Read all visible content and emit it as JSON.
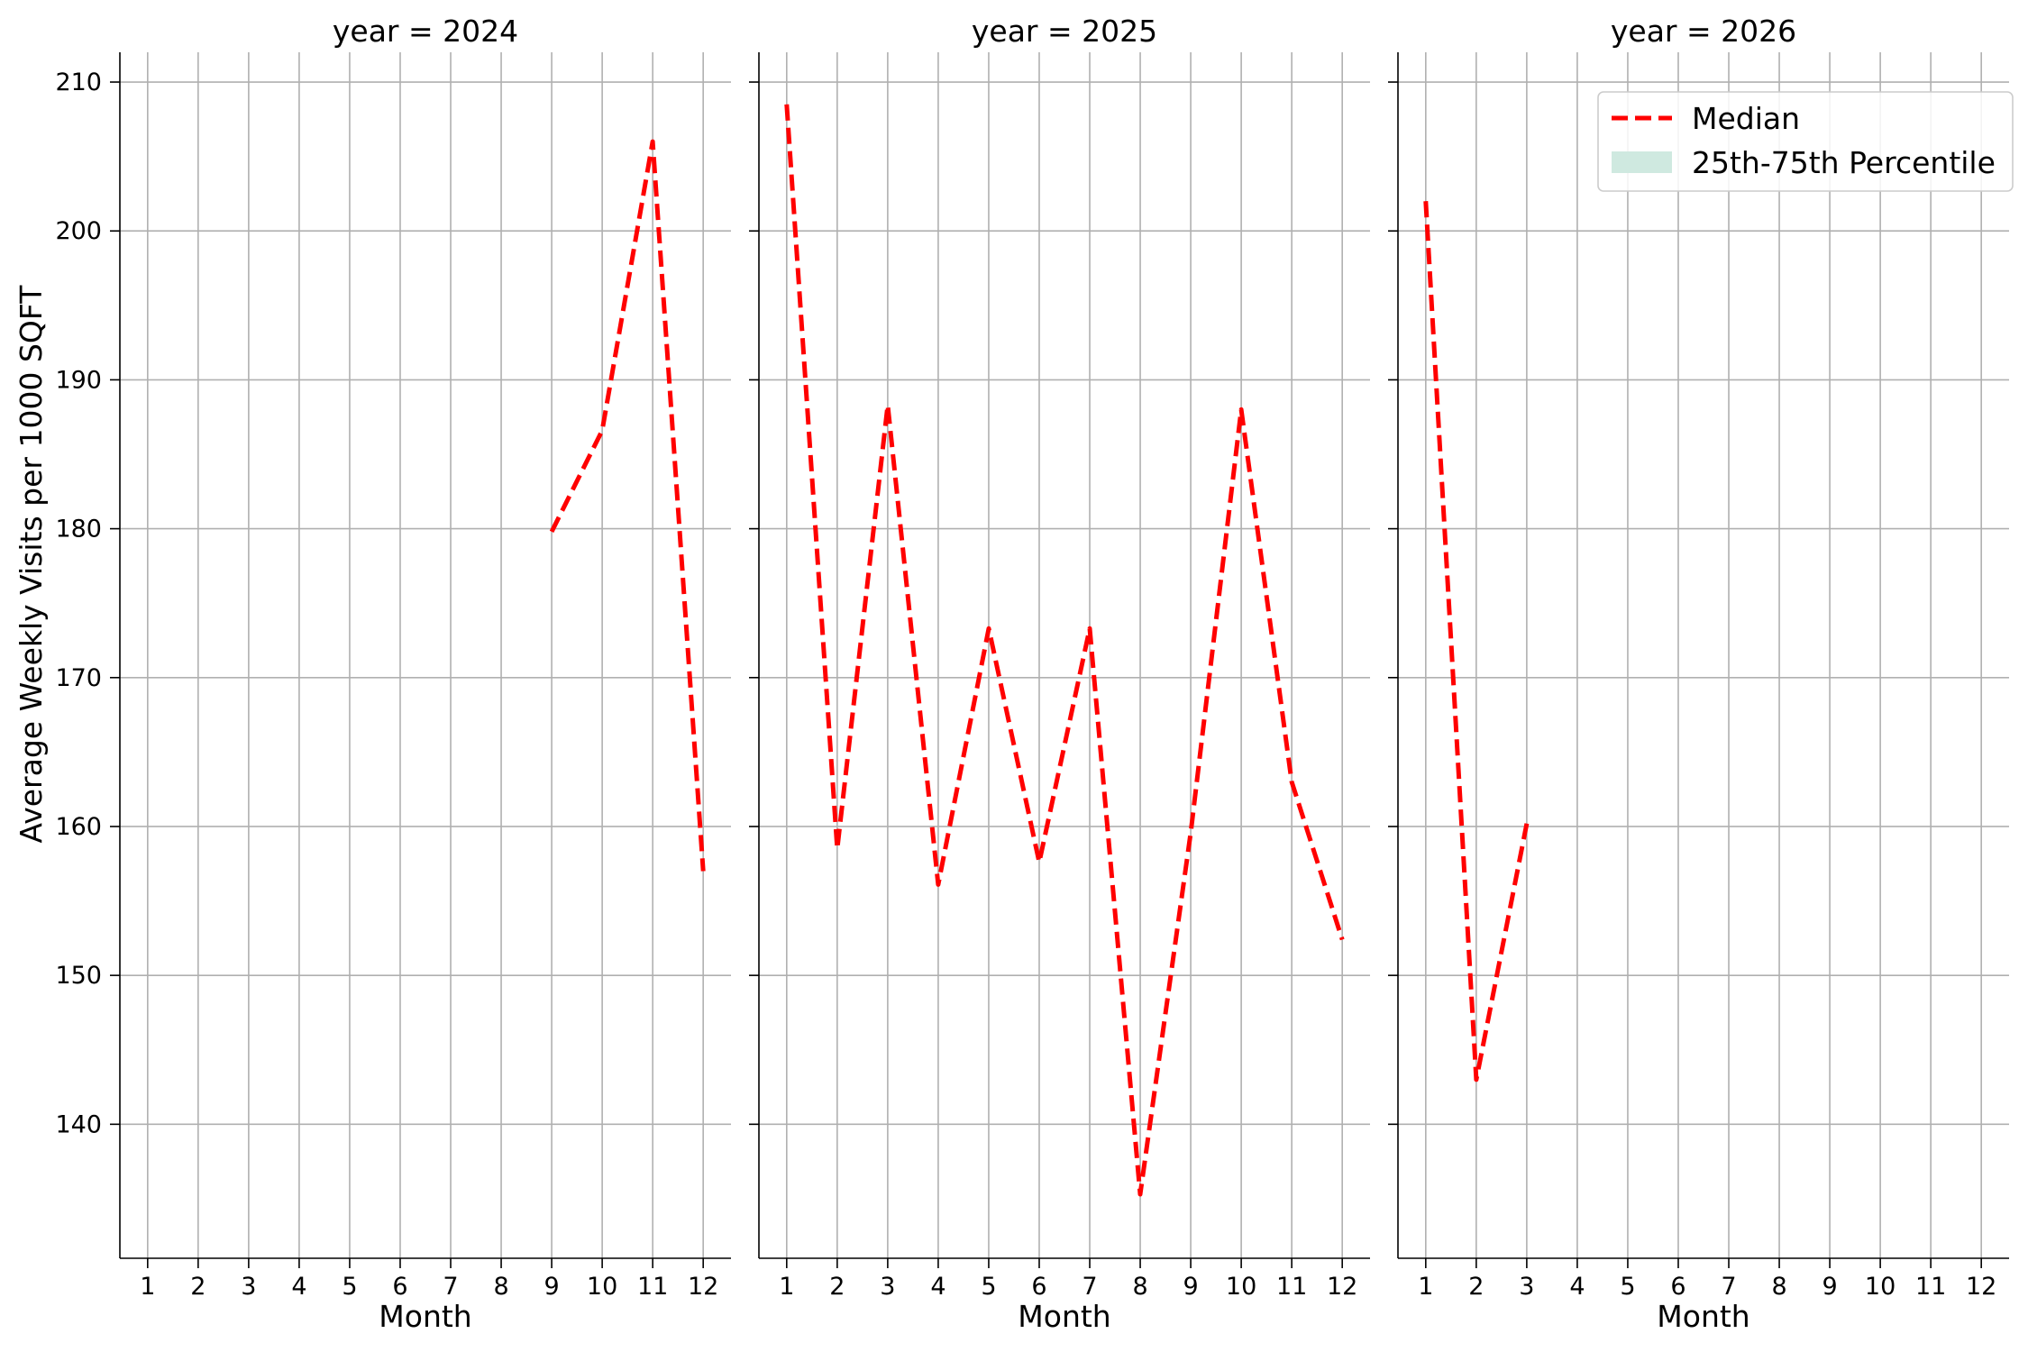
{
  "chart_data": {
    "type": "line",
    "x": [
      1,
      2,
      3,
      4,
      5,
      6,
      7,
      8,
      9,
      10,
      11,
      12
    ],
    "xlabel": "Month",
    "ylabel": "Average Weekly Visits per 1000 SQFT",
    "ylim": [
      131,
      212
    ],
    "xlim": [
      0.45,
      12.55
    ],
    "yticks": [
      140,
      150,
      160,
      170,
      180,
      190,
      200,
      210
    ],
    "grid": true,
    "sharey": true,
    "legend": {
      "placement": "top-right",
      "entries": [
        "Median",
        "25th-75th Percentile"
      ]
    },
    "colors": {
      "median": "#ff0000",
      "percentile_band": "#cfe9e0"
    },
    "panels": [
      {
        "title": "year = 2024",
        "series": [
          {
            "name": "Median",
            "x": [
              9,
              10,
              11,
              12
            ],
            "values": [
              179.8,
              186.6,
              206.0,
              157.0
            ]
          }
        ]
      },
      {
        "title": "year = 2025",
        "series": [
          {
            "name": "Median",
            "x": [
              1,
              2,
              3,
              4,
              5,
              6,
              7,
              8,
              9,
              10,
              11,
              12
            ],
            "values": [
              208.5,
              158.5,
              188.3,
              156.1,
              173.3,
              157.6,
              173.3,
              135.3,
              159.6,
              188.0,
              163.0,
              152.4
            ]
          }
        ]
      },
      {
        "title": "year = 2026",
        "series": [
          {
            "name": "Median",
            "x": [
              1,
              2,
              3
            ],
            "values": [
              202.0,
              143.0,
              160.2
            ]
          }
        ]
      }
    ]
  }
}
